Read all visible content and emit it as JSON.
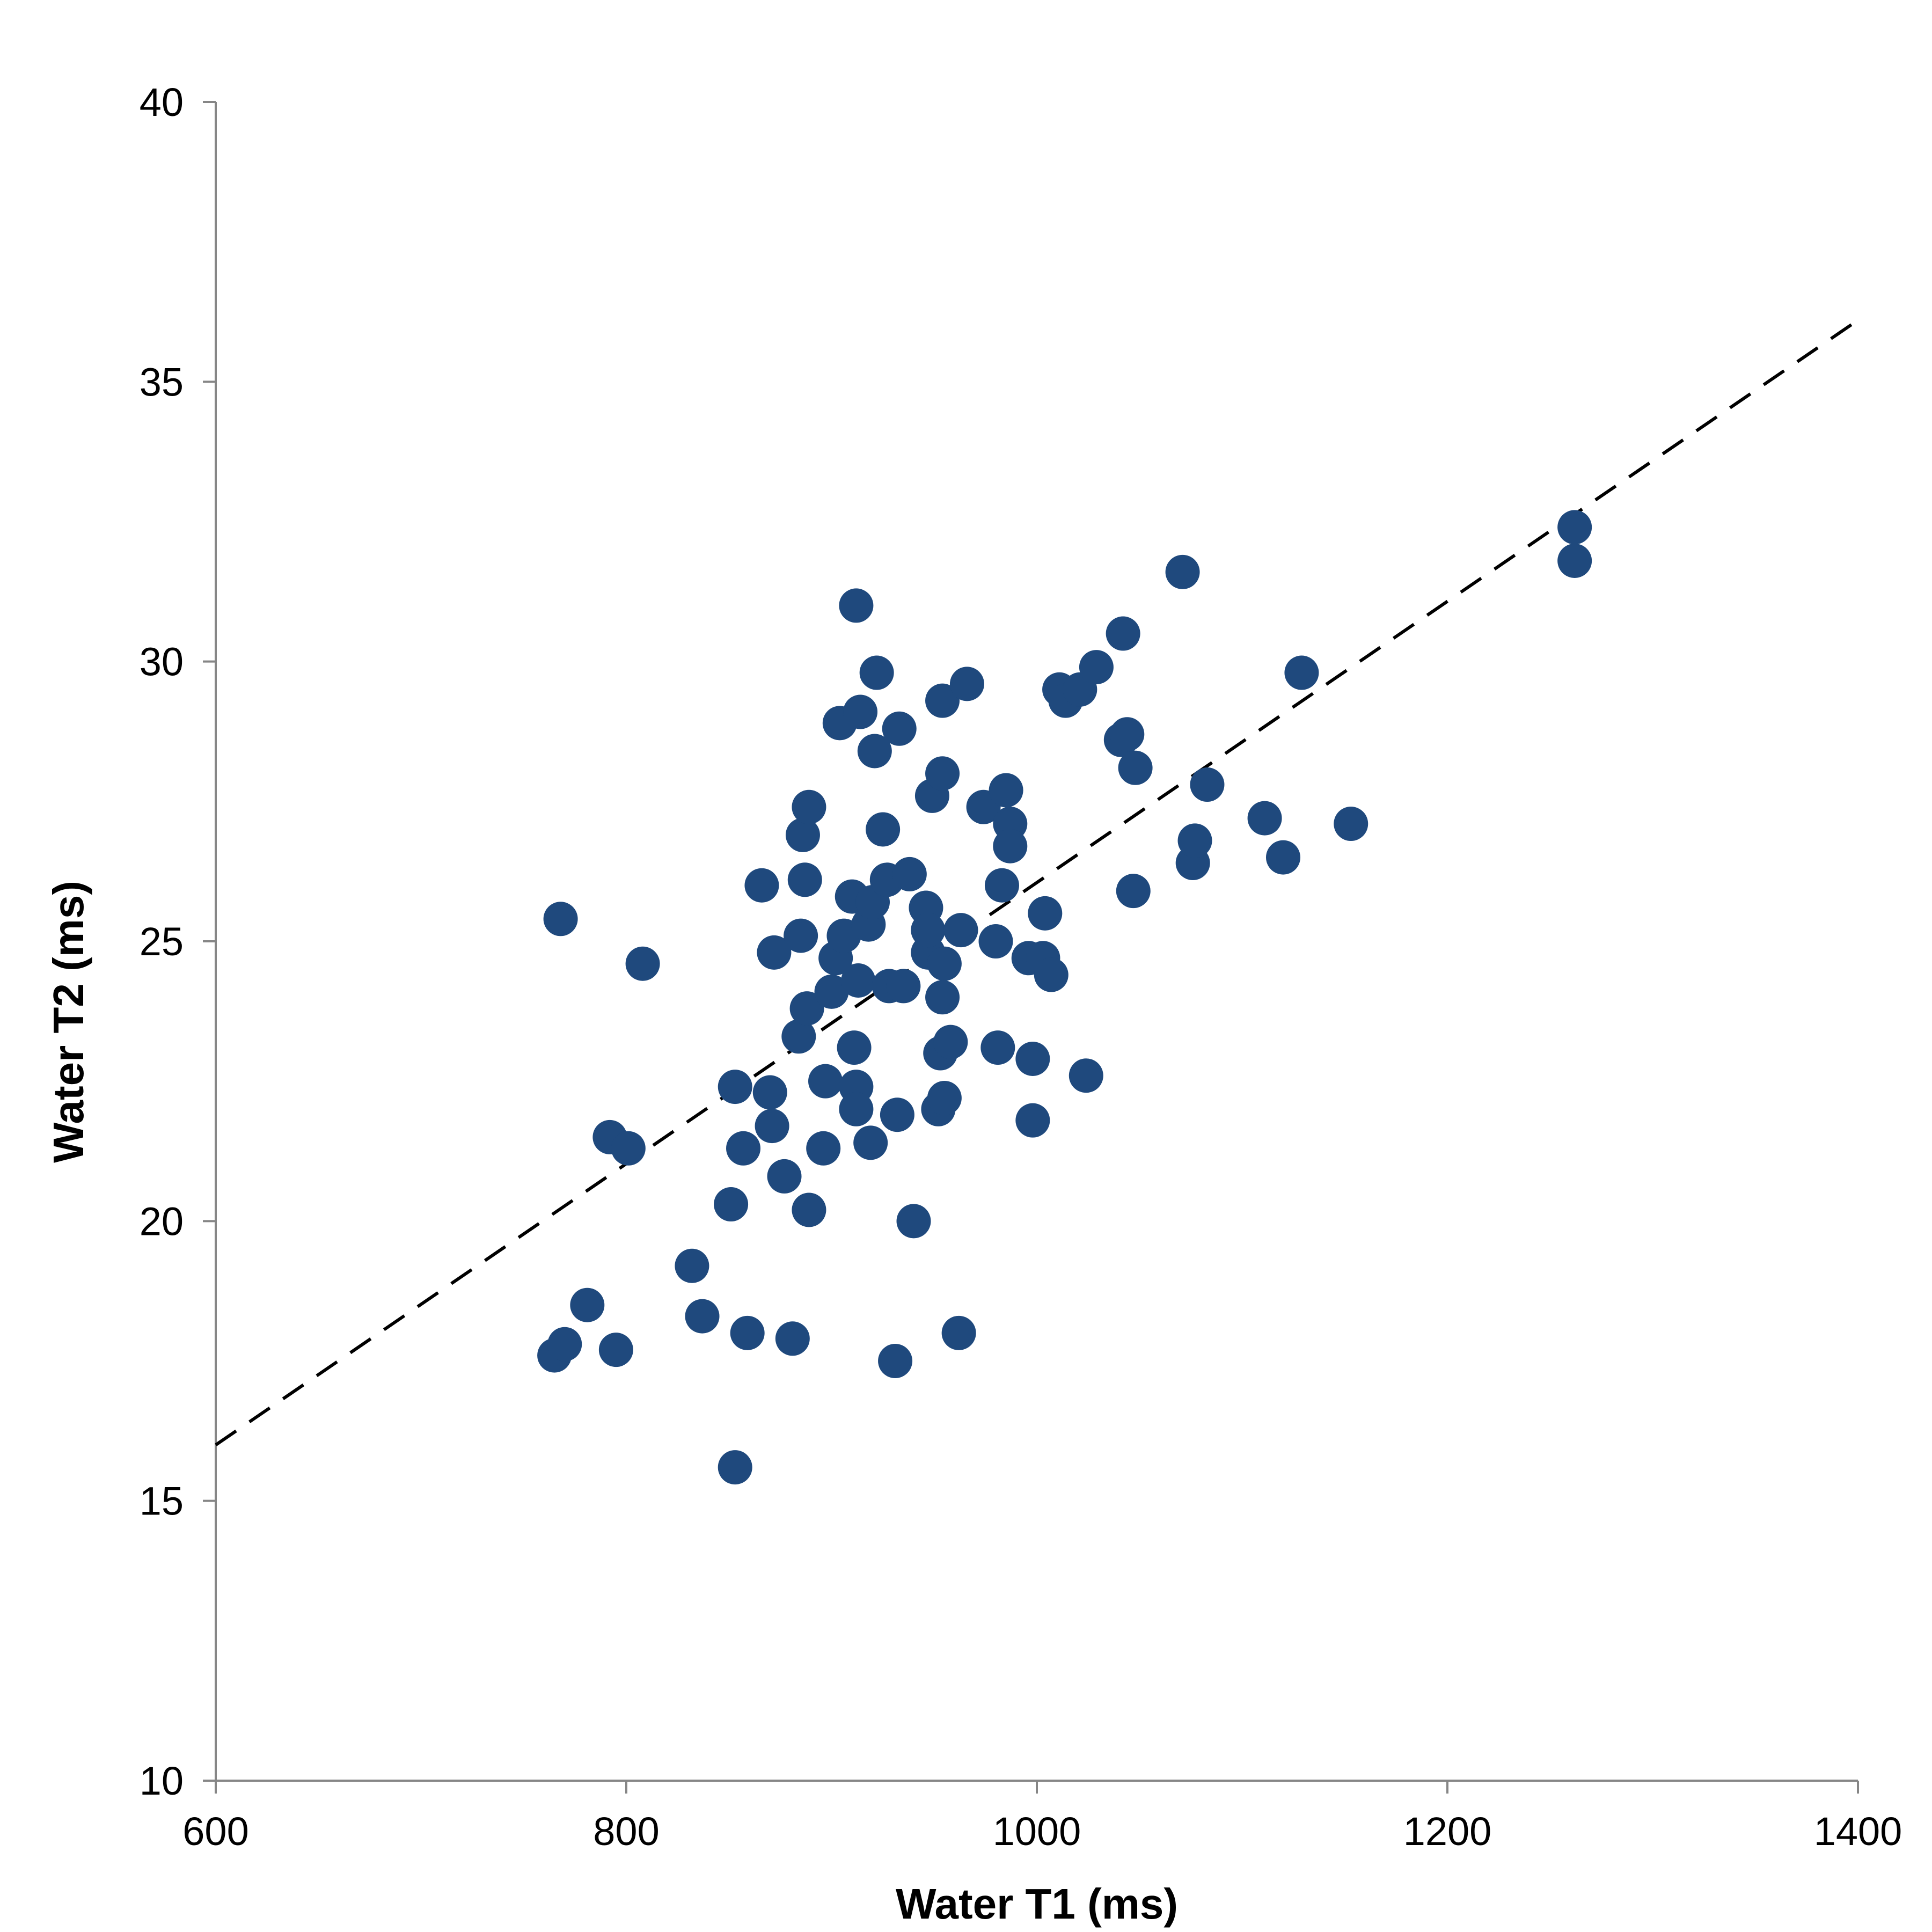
{
  "chart_data": {
    "type": "scatter",
    "title": "",
    "xlabel": "Water T1 (ms)",
    "ylabel": "Water T2 (ms)",
    "xlim": [
      600,
      1400
    ],
    "ylim": [
      10,
      40
    ],
    "xticks": [
      600,
      800,
      1000,
      1200,
      1400
    ],
    "yticks": [
      10,
      15,
      20,
      25,
      30,
      35,
      40
    ],
    "xtick_labels": [
      "600",
      "800",
      "1000",
      "1200",
      "1400"
    ],
    "ytick_labels": [
      "10",
      "15",
      "20",
      "25",
      "30",
      "35",
      "40"
    ],
    "grid": false,
    "legend": "none",
    "marker_color": "#1f497d",
    "trendline": {
      "style": "dashed",
      "color": "#000000",
      "points": [
        [
          600,
          16.0
        ],
        [
          1400,
          36.1
        ]
      ]
    },
    "series": [
      {
        "points": [
          [
            765,
            17.6
          ],
          [
            770,
            17.8
          ],
          [
            781,
            18.5
          ],
          [
            795,
            17.7
          ],
          [
            768,
            25.4
          ],
          [
            792,
            21.5
          ],
          [
            801,
            21.3
          ],
          [
            808,
            24.6
          ],
          [
            832,
            19.2
          ],
          [
            837,
            18.3
          ],
          [
            851,
            20.3
          ],
          [
            853,
            15.6
          ],
          [
            853,
            22.4
          ],
          [
            857,
            21.3
          ],
          [
            859,
            18.0
          ],
          [
            866,
            26.0
          ],
          [
            870,
            22.3
          ],
          [
            871,
            21.7
          ],
          [
            872,
            24.8
          ],
          [
            877,
            20.8
          ],
          [
            881,
            17.9
          ],
          [
            884,
            23.3
          ],
          [
            885,
            25.1
          ],
          [
            886,
            26.9
          ],
          [
            887,
            26.1
          ],
          [
            888,
            23.8
          ],
          [
            889,
            20.2
          ],
          [
            889,
            27.4
          ],
          [
            896,
            21.3
          ],
          [
            897,
            22.5
          ],
          [
            900,
            24.1
          ],
          [
            902,
            24.7
          ],
          [
            904,
            28.9
          ],
          [
            906,
            25.1
          ],
          [
            910,
            25.8
          ],
          [
            911,
            23.1
          ],
          [
            912,
            22.4
          ],
          [
            912,
            22.0
          ],
          [
            912,
            31.0
          ],
          [
            913,
            24.3
          ],
          [
            914,
            29.1
          ],
          [
            918,
            25.3
          ],
          [
            919,
            21.4
          ],
          [
            920,
            25.7
          ],
          [
            921,
            28.4
          ],
          [
            922,
            29.8
          ],
          [
            925,
            27.0
          ],
          [
            927,
            26.1
          ],
          [
            928,
            24.2
          ],
          [
            932,
            21.9
          ],
          [
            931,
            17.5
          ],
          [
            933,
            28.8
          ],
          [
            935,
            24.2
          ],
          [
            938,
            26.2
          ],
          [
            940,
            20.0
          ],
          [
            946,
            25.6
          ],
          [
            947,
            24.8
          ],
          [
            947,
            25.2
          ],
          [
            949,
            27.6
          ],
          [
            952,
            22.0
          ],
          [
            953,
            23.0
          ],
          [
            954,
            28.0
          ],
          [
            954,
            29.3
          ],
          [
            954,
            24.0
          ],
          [
            955,
            24.6
          ],
          [
            955,
            22.2
          ],
          [
            958,
            23.2
          ],
          [
            962,
            18.0
          ],
          [
            963,
            25.2
          ],
          [
            966,
            29.6
          ],
          [
            974,
            27.4
          ],
          [
            980,
            25.0
          ],
          [
            981,
            23.1
          ],
          [
            983,
            26.0
          ],
          [
            985,
            27.7
          ],
          [
            987,
            27.1
          ],
          [
            987,
            26.7
          ],
          [
            996,
            24.7
          ],
          [
            998,
            22.9
          ],
          [
            998,
            21.8
          ],
          [
            1003,
            24.7
          ],
          [
            1004,
            25.5
          ],
          [
            1007,
            24.4
          ],
          [
            1011,
            29.5
          ],
          [
            1014,
            29.3
          ],
          [
            1021,
            29.5
          ],
          [
            1024,
            22.6
          ],
          [
            1029,
            29.9
          ],
          [
            1041,
            28.6
          ],
          [
            1042,
            30.5
          ],
          [
            1044,
            28.7
          ],
          [
            1047,
            25.9
          ],
          [
            1048,
            28.1
          ],
          [
            1071,
            31.6
          ],
          [
            1076,
            26.4
          ],
          [
            1077,
            26.8
          ],
          [
            1083,
            27.8
          ],
          [
            1111,
            27.2
          ],
          [
            1120,
            26.5
          ],
          [
            1129,
            29.8
          ],
          [
            1153,
            27.1
          ],
          [
            1262,
            32.4
          ],
          [
            1262,
            31.8
          ]
        ]
      }
    ]
  }
}
